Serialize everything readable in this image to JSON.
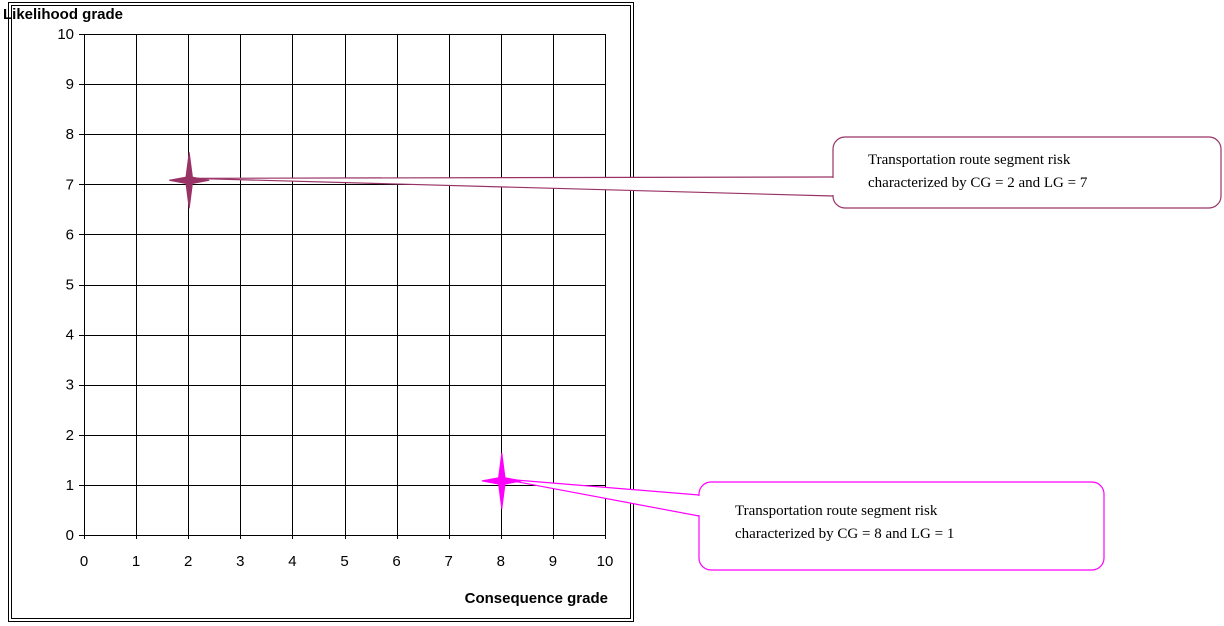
{
  "chart_data": {
    "type": "scatter",
    "xlabel": "Consequence grade",
    "ylabel": "Likelihood grade",
    "xlim": [
      0,
      10
    ],
    "ylim": [
      0,
      10
    ],
    "xticks": [
      "0",
      "1",
      "2",
      "3",
      "4",
      "5",
      "6",
      "7",
      "8",
      "9",
      "10"
    ],
    "yticks": [
      "0",
      "1",
      "2",
      "3",
      "4",
      "5",
      "6",
      "7",
      "8",
      "9",
      "10"
    ],
    "grid": true,
    "points": [
      {
        "x": 2,
        "y": 7,
        "color": "#993366",
        "marker": "four-point-star",
        "callout": [
          "Transportation route segment risk",
          "characterized by CG = 2 and LG = 7"
        ]
      },
      {
        "x": 8,
        "y": 1,
        "color": "#ff00ff",
        "marker": "four-point-star",
        "callout": [
          "Transportation route segment risk",
          "characterized by CG = 8 and LG = 1"
        ]
      }
    ]
  }
}
